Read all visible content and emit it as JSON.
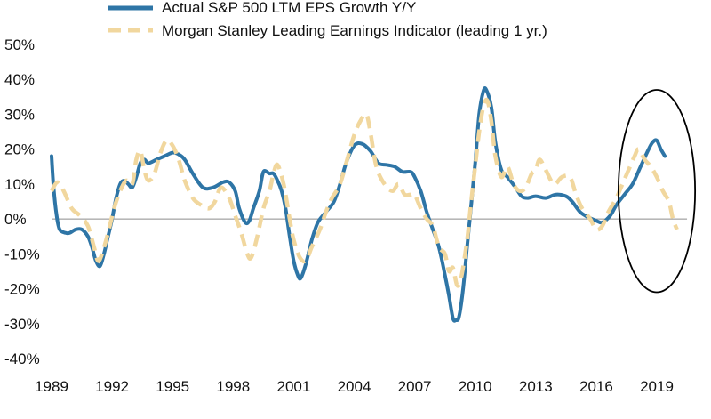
{
  "chart_data": {
    "type": "line",
    "title": "",
    "xlabel": "",
    "ylabel": "",
    "xlim": [
      1989,
      2020.5
    ],
    "ylim": [
      -40,
      50
    ],
    "x_ticks": [
      1989,
      1992,
      1995,
      1998,
      2001,
      2004,
      2007,
      2010,
      2013,
      2016,
      2019
    ],
    "y_ticks": [
      50,
      40,
      30,
      20,
      10,
      0,
      -10,
      -20,
      -30,
      -40
    ],
    "y_tick_labels": [
      "50%",
      "40%",
      "30%",
      "20%",
      "10%",
      "0%",
      "-10%",
      "-20%",
      "-30%",
      "-40%"
    ],
    "grid": false,
    "legend_position": "top",
    "series": [
      {
        "name": "Actual S&P 500 LTM EPS Growth Y/Y",
        "color": "#2e75a6",
        "style": "solid",
        "points": [
          [
            1989.0,
            18
          ],
          [
            1989.1,
            9
          ],
          [
            1989.25,
            1
          ],
          [
            1989.4,
            -3
          ],
          [
            1989.7,
            -4
          ],
          [
            1989.9,
            -4
          ],
          [
            1990.2,
            -3
          ],
          [
            1990.5,
            -3
          ],
          [
            1990.8,
            -5
          ],
          [
            1991.0,
            -8
          ],
          [
            1991.2,
            -12
          ],
          [
            1991.4,
            -13.5
          ],
          [
            1991.6,
            -10
          ],
          [
            1991.8,
            -5
          ],
          [
            1992.0,
            0
          ],
          [
            1992.2,
            6
          ],
          [
            1992.4,
            10
          ],
          [
            1992.6,
            11
          ],
          [
            1992.8,
            10
          ],
          [
            1993.0,
            9
          ],
          [
            1993.2,
            12
          ],
          [
            1993.4,
            16
          ],
          [
            1993.6,
            17
          ],
          [
            1993.8,
            16
          ],
          [
            1994.2,
            17
          ],
          [
            1994.6,
            18
          ],
          [
            1995.0,
            19
          ],
          [
            1995.3,
            18.5
          ],
          [
            1995.6,
            17
          ],
          [
            1996.0,
            13
          ],
          [
            1996.5,
            9
          ],
          [
            1997.0,
            9
          ],
          [
            1997.5,
            10.5
          ],
          [
            1997.8,
            10.5
          ],
          [
            1998.1,
            8
          ],
          [
            1998.3,
            3
          ],
          [
            1998.6,
            -1
          ],
          [
            1998.8,
            -0.5
          ],
          [
            1999.0,
            3
          ],
          [
            1999.3,
            8
          ],
          [
            1999.5,
            13.5
          ],
          [
            1999.8,
            13
          ],
          [
            2000.0,
            13
          ],
          [
            2000.2,
            11
          ],
          [
            2000.4,
            8
          ],
          [
            2000.6,
            3
          ],
          [
            2000.8,
            -5
          ],
          [
            2001.0,
            -12
          ],
          [
            2001.2,
            -16
          ],
          [
            2001.35,
            -17
          ],
          [
            2001.6,
            -13
          ],
          [
            2001.9,
            -6
          ],
          [
            2002.2,
            -1
          ],
          [
            2002.6,
            2
          ],
          [
            2003.0,
            5
          ],
          [
            2003.3,
            10
          ],
          [
            2003.6,
            16
          ],
          [
            2004.0,
            21
          ],
          [
            2004.4,
            21.5
          ],
          [
            2004.8,
            19.5
          ],
          [
            2005.2,
            16
          ],
          [
            2005.6,
            15.5
          ],
          [
            2006.0,
            15
          ],
          [
            2006.4,
            13.5
          ],
          [
            2006.8,
            13.5
          ],
          [
            2007.0,
            12
          ],
          [
            2007.3,
            8
          ],
          [
            2007.6,
            2
          ],
          [
            2007.9,
            -3
          ],
          [
            2008.2,
            -8
          ],
          [
            2008.5,
            -16
          ],
          [
            2008.7,
            -22
          ],
          [
            2008.9,
            -28.5
          ],
          [
            2009.05,
            -29
          ],
          [
            2009.2,
            -28
          ],
          [
            2009.4,
            -20
          ],
          [
            2009.6,
            -8
          ],
          [
            2009.8,
            4
          ],
          [
            2010.0,
            16
          ],
          [
            2010.2,
            30
          ],
          [
            2010.4,
            36.5
          ],
          [
            2010.55,
            37
          ],
          [
            2010.8,
            32
          ],
          [
            2011.0,
            22
          ],
          [
            2011.3,
            14
          ],
          [
            2011.6,
            12
          ],
          [
            2012.0,
            9
          ],
          [
            2012.3,
            6.5
          ],
          [
            2012.6,
            6
          ],
          [
            2013.0,
            6.5
          ],
          [
            2013.5,
            6
          ],
          [
            2014.0,
            7
          ],
          [
            2014.5,
            6.5
          ],
          [
            2014.8,
            5
          ],
          [
            2015.2,
            2
          ],
          [
            2015.6,
            0.5
          ],
          [
            2016.0,
            -0.5
          ],
          [
            2016.3,
            -1
          ],
          [
            2016.7,
            1
          ],
          [
            2017.0,
            4
          ],
          [
            2017.4,
            7
          ],
          [
            2017.8,
            10
          ],
          [
            2018.2,
            15
          ],
          [
            2018.6,
            20
          ],
          [
            2018.8,
            22
          ],
          [
            2019.0,
            22.5
          ],
          [
            2019.2,
            20
          ],
          [
            2019.4,
            18
          ]
        ]
      },
      {
        "name": "Morgan Stanley Leading Earnings Indicator (leading 1 yr.)",
        "color": "#f1d79e",
        "style": "dashed",
        "points": [
          [
            1989.0,
            8
          ],
          [
            1989.3,
            10.5
          ],
          [
            1989.6,
            8
          ],
          [
            1990.0,
            3
          ],
          [
            1990.4,
            1
          ],
          [
            1990.8,
            -2
          ],
          [
            1991.1,
            -8
          ],
          [
            1991.3,
            -12
          ],
          [
            1991.5,
            -10
          ],
          [
            1991.8,
            -4
          ],
          [
            1992.1,
            3
          ],
          [
            1992.4,
            8
          ],
          [
            1992.7,
            11
          ],
          [
            1993.0,
            10
          ],
          [
            1993.2,
            17
          ],
          [
            1993.4,
            19.5
          ],
          [
            1993.6,
            14
          ],
          [
            1993.8,
            11
          ],
          [
            1994.1,
            13
          ],
          [
            1994.4,
            19
          ],
          [
            1994.7,
            22.5
          ],
          [
            1995.0,
            21
          ],
          [
            1995.3,
            17
          ],
          [
            1995.6,
            11
          ],
          [
            1996.0,
            6
          ],
          [
            1996.4,
            4
          ],
          [
            1996.8,
            3
          ],
          [
            1997.1,
            5
          ],
          [
            1997.4,
            9
          ],
          [
            1997.8,
            6
          ],
          [
            1998.1,
            1
          ],
          [
            1998.4,
            -4
          ],
          [
            1998.7,
            -10
          ],
          [
            1998.9,
            -11
          ],
          [
            1999.2,
            -5
          ],
          [
            1999.5,
            3
          ],
          [
            1999.8,
            8
          ],
          [
            2000.0,
            13
          ],
          [
            2000.2,
            15.5
          ],
          [
            2000.5,
            10
          ],
          [
            2000.8,
            0
          ],
          [
            2001.0,
            -6
          ],
          [
            2001.3,
            -11
          ],
          [
            2001.6,
            -12
          ],
          [
            2001.9,
            -8
          ],
          [
            2002.3,
            -3
          ],
          [
            2002.6,
            2
          ],
          [
            2002.9,
            6
          ],
          [
            2003.3,
            10
          ],
          [
            2003.7,
            18
          ],
          [
            2004.0,
            24
          ],
          [
            2004.3,
            28
          ],
          [
            2004.6,
            30
          ],
          [
            2004.8,
            25
          ],
          [
            2005.1,
            15
          ],
          [
            2005.5,
            10
          ],
          [
            2005.9,
            8
          ],
          [
            2006.2,
            10
          ],
          [
            2006.5,
            7
          ],
          [
            2006.8,
            7
          ],
          [
            2007.0,
            7
          ],
          [
            2007.3,
            3
          ],
          [
            2007.6,
            0
          ],
          [
            2007.9,
            -2
          ],
          [
            2008.2,
            -8
          ],
          [
            2008.5,
            -10
          ],
          [
            2008.7,
            -15
          ],
          [
            2008.9,
            -14
          ],
          [
            2009.1,
            -19
          ],
          [
            2009.3,
            -17
          ],
          [
            2009.6,
            -6
          ],
          [
            2009.8,
            5
          ],
          [
            2010.0,
            15
          ],
          [
            2010.2,
            25
          ],
          [
            2010.4,
            32
          ],
          [
            2010.6,
            34
          ],
          [
            2010.8,
            28
          ],
          [
            2011.0,
            18
          ],
          [
            2011.3,
            12
          ],
          [
            2011.6,
            15
          ],
          [
            2011.9,
            10
          ],
          [
            2012.2,
            8
          ],
          [
            2012.5,
            9
          ],
          [
            2012.8,
            13
          ],
          [
            2013.0,
            14
          ],
          [
            2013.2,
            17
          ],
          [
            2013.5,
            14
          ],
          [
            2013.9,
            10
          ],
          [
            2014.3,
            12
          ],
          [
            2014.7,
            12
          ],
          [
            2015.0,
            7
          ],
          [
            2015.3,
            3
          ],
          [
            2015.7,
            0
          ],
          [
            2016.0,
            -3
          ],
          [
            2016.3,
            -2
          ],
          [
            2016.6,
            2
          ],
          [
            2017.0,
            6
          ],
          [
            2017.3,
            10
          ],
          [
            2017.6,
            14
          ],
          [
            2017.9,
            18
          ],
          [
            2018.1,
            20
          ],
          [
            2018.4,
            17
          ],
          [
            2018.7,
            15
          ],
          [
            2019.0,
            12
          ],
          [
            2019.3,
            8
          ],
          [
            2019.6,
            5
          ],
          [
            2019.8,
            0
          ],
          [
            2020.0,
            -3
          ]
        ]
      }
    ],
    "annotations": [
      {
        "type": "ellipse",
        "cx": 2019.0,
        "cy": 8,
        "rx": 1.9,
        "ry": 29
      }
    ]
  }
}
